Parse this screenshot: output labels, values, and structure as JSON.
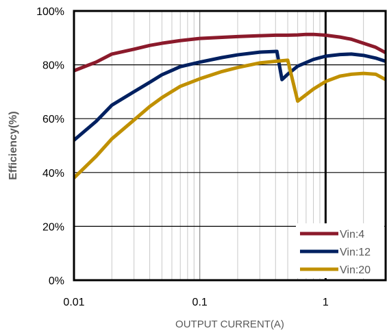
{
  "chart_data": {
    "type": "line",
    "xlabel": "OUTPUT CURRENT(A)",
    "ylabel": "Efficiency(%)",
    "x_scale": "log",
    "xlim": [
      0.01,
      3
    ],
    "ylim": [
      0,
      100
    ],
    "x_ticks": [
      {
        "value": 0.01,
        "label": "0.01"
      },
      {
        "value": 0.1,
        "label": "0.1"
      },
      {
        "value": 1,
        "label": "1"
      }
    ],
    "y_ticks": [
      {
        "value": 0,
        "label": "0%"
      },
      {
        "value": 20,
        "label": "20%"
      },
      {
        "value": 40,
        "label": "40%"
      },
      {
        "value": 60,
        "label": "60%"
      },
      {
        "value": 80,
        "label": "80%"
      },
      {
        "value": 100,
        "label": "100%"
      }
    ],
    "grid": true,
    "legend_position": "bottom-right",
    "series": [
      {
        "name": "Vin:4",
        "color": "#8B1A2B",
        "points": [
          [
            0.01,
            77.8
          ],
          [
            0.015,
            81.0
          ],
          [
            0.02,
            84.0
          ],
          [
            0.03,
            85.8
          ],
          [
            0.04,
            87.2
          ],
          [
            0.05,
            88.0
          ],
          [
            0.07,
            89.0
          ],
          [
            0.1,
            89.8
          ],
          [
            0.15,
            90.2
          ],
          [
            0.2,
            90.5
          ],
          [
            0.3,
            90.8
          ],
          [
            0.4,
            91.0
          ],
          [
            0.5,
            91.0
          ],
          [
            0.6,
            91.1
          ],
          [
            0.7,
            91.3
          ],
          [
            0.8,
            91.3
          ],
          [
            1.0,
            91.0
          ],
          [
            1.3,
            90.3
          ],
          [
            1.6,
            89.5
          ],
          [
            2.0,
            88.0
          ],
          [
            2.5,
            86.5
          ],
          [
            3.0,
            84.5
          ]
        ]
      },
      {
        "name": "Vin:12",
        "color": "#002060",
        "points": [
          [
            0.01,
            52.0
          ],
          [
            0.015,
            59.0
          ],
          [
            0.02,
            65.0
          ],
          [
            0.03,
            70.0
          ],
          [
            0.04,
            73.5
          ],
          [
            0.05,
            76.3
          ],
          [
            0.07,
            79.3
          ],
          [
            0.1,
            81.0
          ],
          [
            0.15,
            82.7
          ],
          [
            0.2,
            83.7
          ],
          [
            0.3,
            84.7
          ],
          [
            0.41,
            85.0
          ],
          [
            0.45,
            74.5
          ],
          [
            0.5,
            76.5
          ],
          [
            0.6,
            79.5
          ],
          [
            0.8,
            82.0
          ],
          [
            1.0,
            83.2
          ],
          [
            1.3,
            83.8
          ],
          [
            1.6,
            84.0
          ],
          [
            2.0,
            83.5
          ],
          [
            2.5,
            82.5
          ],
          [
            3.0,
            81.3
          ]
        ]
      },
      {
        "name": "Vin:20",
        "color": "#C09000",
        "points": [
          [
            0.01,
            38.0
          ],
          [
            0.015,
            46.0
          ],
          [
            0.02,
            52.5
          ],
          [
            0.03,
            59.5
          ],
          [
            0.04,
            64.5
          ],
          [
            0.05,
            67.8
          ],
          [
            0.07,
            72.0
          ],
          [
            0.1,
            74.8
          ],
          [
            0.15,
            77.5
          ],
          [
            0.2,
            79.0
          ],
          [
            0.3,
            80.7
          ],
          [
            0.4,
            81.3
          ],
          [
            0.5,
            81.7
          ],
          [
            0.6,
            66.5
          ],
          [
            0.8,
            71.0
          ],
          [
            1.0,
            73.8
          ],
          [
            1.3,
            75.8
          ],
          [
            1.6,
            76.5
          ],
          [
            2.0,
            76.8
          ],
          [
            2.5,
            76.5
          ],
          [
            3.0,
            74.5
          ]
        ]
      }
    ]
  }
}
